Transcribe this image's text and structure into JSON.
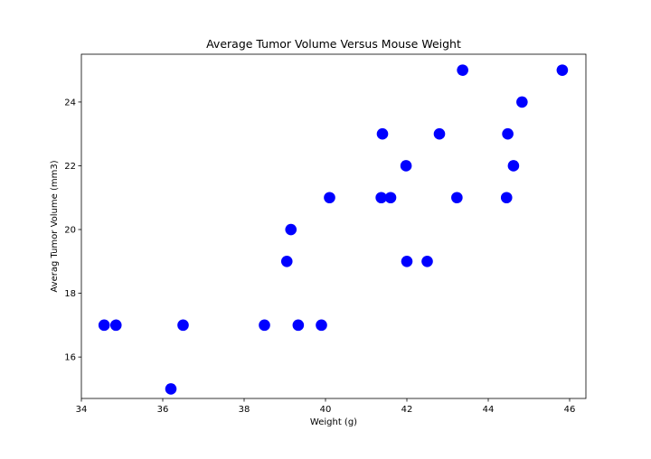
{
  "chart_data": {
    "type": "scatter",
    "title": "Average Tumor Volume Versus Mouse Weight",
    "xlabel": "Weight (g)",
    "ylabel": "Averag Tumor Volume (mm3)",
    "xlim": [
      34,
      46.4
    ],
    "ylim": [
      14.7,
      25.5
    ],
    "xticks": [
      34,
      36,
      38,
      40,
      42,
      44,
      46
    ],
    "yticks": [
      16,
      18,
      20,
      22,
      24
    ],
    "grid": false,
    "marker_color": "#0000ff",
    "points": [
      {
        "x": 34.56,
        "y": 17
      },
      {
        "x": 34.85,
        "y": 17
      },
      {
        "x": 36.2,
        "y": 15
      },
      {
        "x": 36.5,
        "y": 17
      },
      {
        "x": 38.5,
        "y": 17
      },
      {
        "x": 39.05,
        "y": 19
      },
      {
        "x": 39.15,
        "y": 20
      },
      {
        "x": 39.33,
        "y": 17
      },
      {
        "x": 39.9,
        "y": 17
      },
      {
        "x": 40.1,
        "y": 21
      },
      {
        "x": 41.37,
        "y": 21
      },
      {
        "x": 41.4,
        "y": 23
      },
      {
        "x": 41.6,
        "y": 21
      },
      {
        "x": 41.98,
        "y": 22
      },
      {
        "x": 42.0,
        "y": 19
      },
      {
        "x": 42.5,
        "y": 19
      },
      {
        "x": 42.8,
        "y": 23
      },
      {
        "x": 43.23,
        "y": 21
      },
      {
        "x": 43.37,
        "y": 25
      },
      {
        "x": 44.45,
        "y": 21
      },
      {
        "x": 44.48,
        "y": 23
      },
      {
        "x": 44.62,
        "y": 22
      },
      {
        "x": 44.83,
        "y": 24
      },
      {
        "x": 45.82,
        "y": 25
      }
    ]
  }
}
